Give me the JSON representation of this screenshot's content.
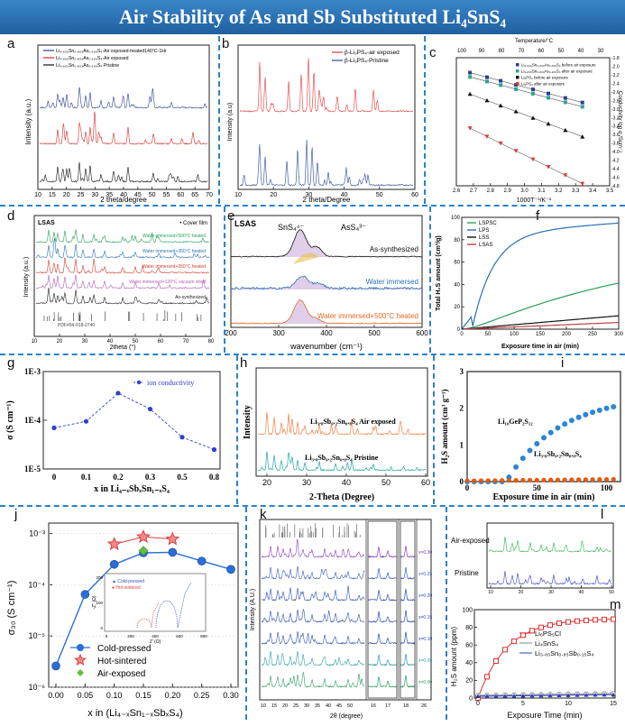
{
  "title": "Air Stability of  As and Sb Substituted Li₄SnS₄",
  "panels": {
    "a": {
      "label": "a",
      "legend": [
        "Li₃.₈₃₃Sn₀.₈₃₃As₀.₁₆₆S₄-Air exposed-heated140°C-1Hr",
        "Li₃.₈₃₃Sn₀.₈₃₃As₀.₁₆₆S₄-Air exposed",
        "Li₃.₈₃₃Sn₀.₈₃₃As₀.₁₆₆S₄ Pristine"
      ],
      "colors": [
        "#2b3f8f",
        "#d8282b",
        "#111111"
      ],
      "xlabel": "2 theta/degree",
      "ylabel": "Intensity (a.u.)",
      "xticks": [
        "10",
        "15",
        "20",
        "25",
        "30",
        "35",
        "40",
        "45",
        "50",
        "55",
        "60",
        "65",
        "70"
      ]
    },
    "b": {
      "label": "b",
      "legend": [
        "β-Li₃PS₄-air exposed",
        "β-Li₃PS₄-Pristine"
      ],
      "colors": [
        "#e03a3a",
        "#2a4aa0"
      ],
      "xlabel": "2 theta/Degree",
      "ylabel": "Intensity (a.u)",
      "xticks": [
        "10",
        "20",
        "30",
        "40",
        "50",
        "60"
      ]
    },
    "c": {
      "label": "c",
      "top_label": "Temperature/°C",
      "top_ticks": [
        "100",
        "90",
        "80",
        "70",
        "60",
        "50",
        "40",
        "30"
      ],
      "xlabel": "1000T⁻¹/K⁻¹",
      "ylabel": "Conductivity log σ /Scm⁻¹",
      "xticks": [
        "2.6",
        "2.7",
        "2.8",
        "2.9",
        "3.0",
        "3.1",
        "3.2",
        "3.3",
        "3.4",
        "3.5"
      ],
      "yticks": [
        "-1.8",
        "-2.0",
        "-2.2",
        "-2.4",
        "-2.6",
        "-2.8",
        "-3.0",
        "-3.2",
        "-3.4",
        "-3.6",
        "-3.8",
        "-4.0",
        "-4.2",
        "-4.4",
        "-4.6",
        "-4.8"
      ],
      "legend": [
        "Li₃.₈₃₃Sn₀.₈₃₃As₀.₁₆₆S₄ before air exposure",
        "Li₃.₈₃₃Sn₀.₈₃₃As₀.₁₆₆S₄ after air exposure",
        "Li₃PS₄ before air exposure",
        "Li₃PS₄ after air exposure"
      ],
      "colors": [
        "#2b3f8f",
        "#2aa58c",
        "#111111",
        "#e03a3a"
      ]
    },
    "d": {
      "label": "d",
      "tag": "LSAS",
      "cover": "• Cover film",
      "traces": [
        "Water immersed+500°C heated",
        "Water immersed+350°C heated",
        "Water immersed+260°C heated",
        "Water immersed+120°C vacuum dried",
        "As-synthesized",
        "PDF#04-018-2740"
      ],
      "colors": [
        "#2aa05a",
        "#2a70b5",
        "#d04030",
        "#b060b0",
        "#222222",
        "#444444"
      ],
      "xlabel": "2theta (°)",
      "ylabel": "Intensity (a.u.)",
      "xticks": [
        "10",
        "20",
        "30",
        "40",
        "50",
        "60",
        "70",
        "80"
      ]
    },
    "e": {
      "label": "e",
      "tag": "LSAS",
      "annot1": "SnS₄⁴⁻",
      "annot2": "AsS₄³⁻",
      "traces": [
        "As-synthesized",
        "Water immersed",
        "Water immersed+500°C heated"
      ],
      "trace_colors": [
        "#111111",
        "#2a70b5",
        "#e06a20"
      ],
      "xlabel": "wavenumber (cm⁻¹)",
      "xticks": [
        "200",
        "300",
        "400",
        "500",
        "600"
      ]
    },
    "f": {
      "label": "f",
      "legend": [
        "LSPSC",
        "LPS",
        "LSS",
        "LSAS"
      ],
      "colors": [
        "#2aa05a",
        "#2a70b5",
        "#111111",
        "#c04040"
      ],
      "xlabel": "Exposure time in air (min)",
      "ylabel": "Total H₂S amount (cm³/g)",
      "xticks": [
        "0",
        "50",
        "100",
        "150",
        "200",
        "250",
        "300"
      ],
      "yticks": [
        "0",
        "20",
        "40",
        "60",
        "80",
        "100"
      ]
    },
    "g": {
      "label": "g",
      "legend": "ion conductivity",
      "xlabel": "x in Li₄₋ₓSbₓSn₁₋ₓS₄",
      "ylabel": "σ (S cm⁻¹)",
      "yticks": [
        "1E-3",
        "1E-4",
        "1E-5"
      ],
      "xticks": [
        "0",
        "0.1",
        "0.2",
        "0.3",
        "0.5",
        "0.8"
      ],
      "x": [
        0,
        0.1,
        0.2,
        0.3,
        0.5,
        0.8
      ],
      "y": [
        7e-05,
        9.5e-05,
        0.00036,
        0.00017,
        4.5e-05,
        2.5e-05
      ]
    },
    "h": {
      "label": "h",
      "traces": [
        "Li₃.₈Sb₀.₂Sn₀.₈S₄ Air exposed",
        "Li₃.₈Sb₀.₂Sn₀.₈S₄ Pristine"
      ],
      "colors": [
        "#f08040",
        "#20a8a0"
      ],
      "xlabel": "2-Theta (Degree)",
      "ylabel": "Intensity",
      "xticks": [
        "20",
        "30",
        "40",
        "50",
        "60"
      ]
    },
    "i": {
      "label": "i",
      "series1": "Li₁₀GeP₂S₁₂",
      "series2": "Li₃.₈Sb₀.₂Sn₀.₈S₄",
      "colors": [
        "#2a86d8",
        "#e05a10"
      ],
      "xlabel": "Exposure time in air  (min)",
      "ylabel": "H₂S amount  (cm³ g⁻¹)",
      "xticks": [
        "0",
        "50",
        "100"
      ],
      "yticks": [
        "0",
        "1",
        "2",
        "3"
      ]
    },
    "j": {
      "label": "j",
      "ylabel": "σ₃₀ (S cm⁻¹)",
      "xlabel": "x in (Li₄₋ₓSn₁₋ₓSbₓS₄)",
      "yticks": [
        "10⁻³",
        "10⁻⁴",
        "10⁻⁵",
        "10⁻⁶"
      ],
      "xticks": [
        "0.00",
        "0.05",
        "0.10",
        "0.15",
        "0.20",
        "0.25",
        "0.30"
      ],
      "legend": [
        "Cold-pressed",
        "Hot-sintered",
        "Air-exposed"
      ],
      "colors": [
        "#2a6fd8",
        "#e04040",
        "#60c040"
      ],
      "x_cold": [
        0,
        0.05,
        0.1,
        0.15,
        0.2,
        0.25,
        0.3
      ],
      "y_cold": [
        2.6e-06,
        6.5e-05,
        0.00025,
        0.00042,
        0.00043,
        0.00029,
        0.0002
      ],
      "x_hot": [
        0.1,
        0.15,
        0.2
      ],
      "y_hot": [
        0.00062,
        0.00086,
        0.00078
      ],
      "x_air": [
        0.15
      ],
      "y_air": [
        0.00046
      ],
      "inset_legend": [
        "Cold-pressed",
        "Hot-sintered"
      ],
      "inset_xlabel": "Z' (Ω)",
      "inset_ylabel": "-Z'' (Ω)",
      "inset_xticks": [
        "0",
        "200",
        "400",
        "600",
        "800"
      ],
      "inset_yticks": [
        "0",
        "100",
        "200"
      ]
    },
    "k": {
      "label": "k",
      "xlabel": "2θ (degree)",
      "ylabel": "Intensity (A.U.)",
      "xticks": [
        "10",
        "15",
        "20",
        "25",
        "30",
        "35",
        "40",
        "45",
        "50",
        "16",
        "17",
        "18",
        "26"
      ],
      "series_labels": [
        "x=0.30",
        "x=0.25",
        "x=0.20",
        "x=0.15",
        "x=0.10",
        "x=0.05",
        "x=0.00"
      ],
      "colors": [
        "#8a40c0",
        "#4060c0",
        "#3050b0",
        "#3050b0",
        "#3050b0",
        "#30a0a0",
        "#30a060"
      ]
    },
    "l": {
      "label": "l",
      "traces": [
        "Air-exposed",
        "Pristine"
      ],
      "colors": [
        "#30b050",
        "#3040c0"
      ],
      "xticks": [
        "10",
        "20",
        "30",
        "40",
        "50"
      ]
    },
    "m": {
      "label": "m",
      "legend": [
        "Li₆PS₅Cl",
        "Li₄SnS₄",
        "Li₃.₈₅Sn₀.₈₅Sb₀.₁₅S₄"
      ],
      "colors": [
        "#e03030",
        "#888888",
        "#3040c0"
      ],
      "xlabel": "Exposure Time (min)",
      "ylabel": "H₂S amount (ppm)",
      "xticks": [
        "0",
        "5",
        "10",
        "15"
      ],
      "yticks": [
        "0",
        "20",
        "40",
        "60",
        "80",
        "100"
      ]
    }
  }
}
